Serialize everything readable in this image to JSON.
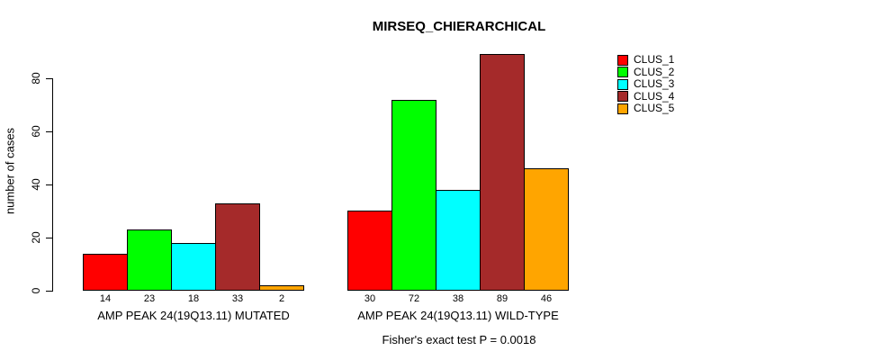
{
  "chart_data": {
    "type": "bar",
    "title": "MIRSEQ_CHIERARCHICAL",
    "ylabel": "number of cases",
    "xlabel": "",
    "yticks": [
      0,
      20,
      40,
      60,
      80
    ],
    "ylim": [
      0,
      89
    ],
    "grid": false,
    "legend_position": "right",
    "categories": [
      "AMP PEAK 24(19Q13.11) MUTATED",
      "AMP PEAK 24(19Q13.11) WILD-TYPE"
    ],
    "series": [
      {
        "name": "CLUS_1",
        "color": "#ff0000",
        "values": [
          14,
          30
        ]
      },
      {
        "name": "CLUS_2",
        "color": "#00ff00",
        "values": [
          23,
          72
        ]
      },
      {
        "name": "CLUS_3",
        "color": "#00ffff",
        "values": [
          18,
          38
        ]
      },
      {
        "name": "CLUS_4",
        "color": "#a52a2a",
        "values": [
          33,
          89
        ]
      },
      {
        "name": "CLUS_5",
        "color": "#ffa500",
        "values": [
          2,
          46
        ]
      }
    ],
    "annotation": "Fisher's exact test P = 0.0018"
  }
}
